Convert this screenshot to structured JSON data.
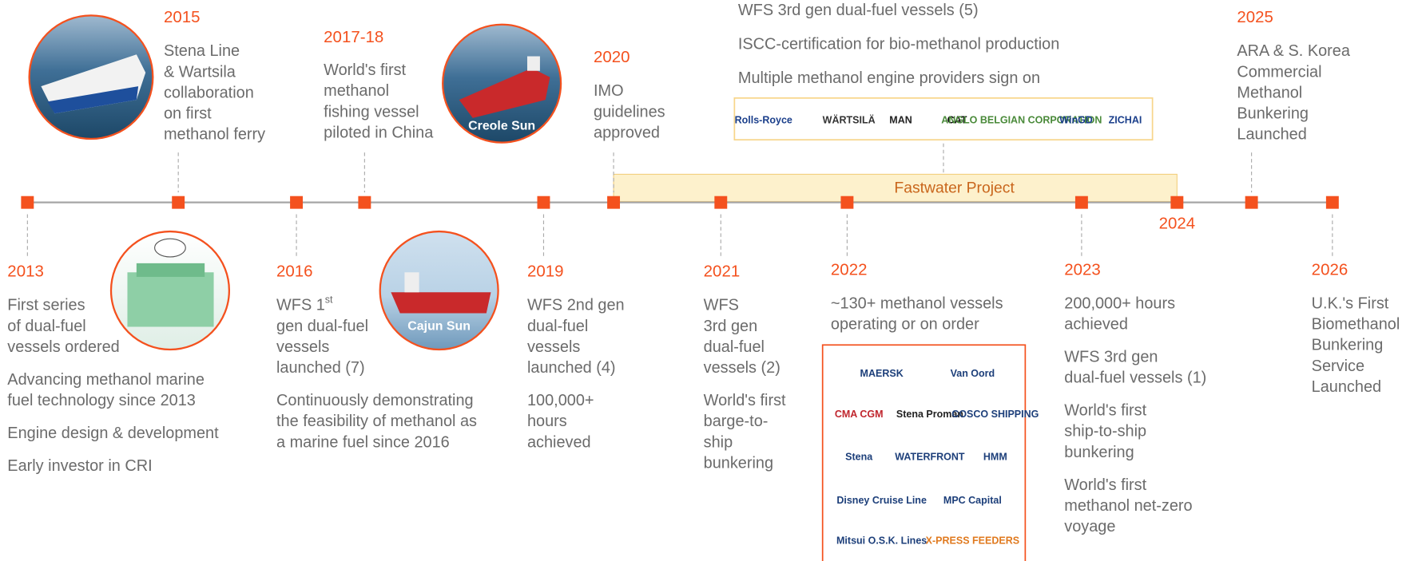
{
  "events": [
    {
      "year": "2013",
      "text": [
        [
          "First series",
          "of dual-fuel",
          "vessels ordered"
        ],
        [
          "Advancing methanol marine",
          "fuel technology since 2013"
        ],
        [
          "Engine design & development"
        ],
        [
          "Early investor in CRI"
        ]
      ]
    },
    {
      "year": "2015",
      "text": [
        [
          "Stena Line",
          "& Wartsila",
          "collaboration",
          "on first",
          "methanol ferry"
        ]
      ]
    },
    {
      "year": "2016",
      "superscript": "st",
      "text": [
        [
          "WFS 1",
          "gen dual-fuel",
          "vessels",
          "launched (7)"
        ],
        [
          "Continuously demonstrating",
          "the feasibility of methanol as",
          "a marine fuel since 2016"
        ]
      ]
    },
    {
      "year": "2017-18",
      "text": [
        [
          "World's first",
          "methanol",
          "fishing vessel",
          "piloted in China"
        ]
      ]
    },
    {
      "year": "2019",
      "text": [
        [
          "WFS 2nd gen",
          "dual-fuel",
          "vessels",
          "launched (4)"
        ],
        [
          "100,000+",
          "hours",
          "achieved"
        ]
      ]
    },
    {
      "year": "2020",
      "text": [
        [
          "IMO",
          "guidelines",
          "approved"
        ]
      ]
    },
    {
      "year": "2021",
      "text": [
        [
          "WFS",
          "3rd gen",
          "dual-fuel",
          "vessels (2)"
        ],
        [
          "World's first",
          "barge-to-",
          "ship",
          "bunkering"
        ]
      ]
    },
    {
      "year": "2022",
      "text": [
        [
          "~130+ methanol vessels",
          "operating or on order"
        ]
      ]
    },
    {
      "year": "2023",
      "text": [
        [
          "200,000+ hours",
          "achieved"
        ],
        [
          "WFS 3rd gen",
          "dual-fuel vessels (1)"
        ],
        [
          "World's first",
          "ship-to-ship",
          "bunkering"
        ],
        [
          "World's first",
          "methanol net-zero",
          "voyage"
        ]
      ]
    },
    {
      "year": "2024",
      "text": []
    },
    {
      "year": "2025",
      "text": [
        [
          "ARA & S. Korea",
          "Commercial",
          "Methanol",
          "Bunkering",
          "Launched"
        ]
      ]
    },
    {
      "year": "2026",
      "text": [
        [
          "U.K.'s First",
          "Biomethanol",
          "Bunkering",
          "Service",
          "Launched"
        ]
      ]
    }
  ],
  "project": "Fastwater Project",
  "project_notes": [
    "WFS 3rd gen dual-fuel vessels (5)",
    "ISCC-certification for bio-methanol production",
    "Multiple methanol engine providers sign on"
  ],
  "engine_logos": [
    "Rolls-Royce",
    "WÄRTSILÄ",
    "MAN",
    "CAT",
    "ANGLO BELGIAN CORPORATION",
    "WinGD",
    "ZICHAI"
  ],
  "owner_logos": [
    "MAERSK",
    "Van Oord",
    "CMA CGM",
    "Stena Proman",
    "COSCO SHIPPING",
    "Stena",
    "WATERFRONT",
    "HMM",
    "Disney Cruise Line",
    "MPC Capital",
    "Mitsui O.S.K. Lines",
    "X-PRESS FEEDERS"
  ],
  "photos": [
    "Creole Sun",
    "Cajun Sun"
  ]
}
